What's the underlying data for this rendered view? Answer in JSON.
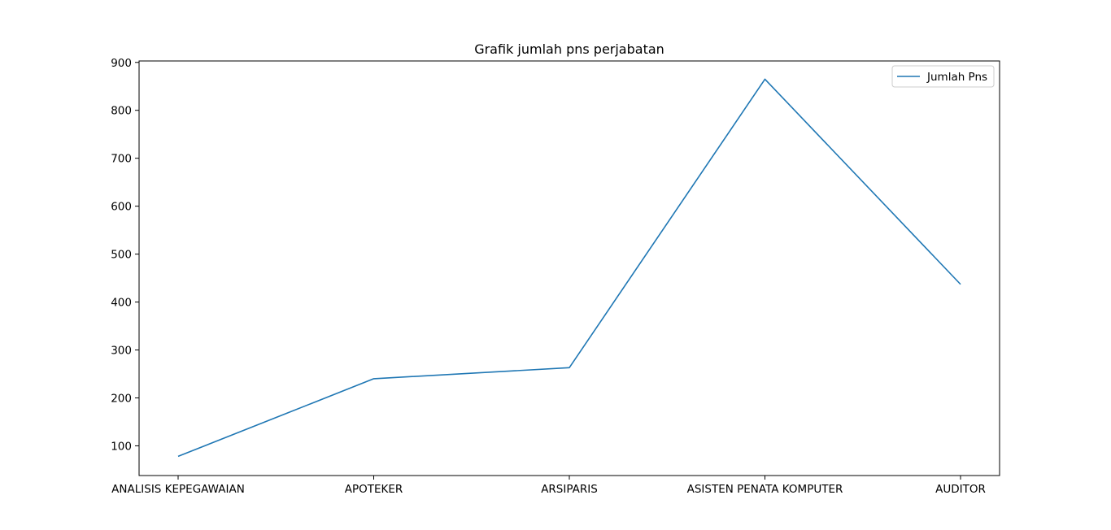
{
  "chart_data": {
    "type": "line",
    "title": "Grafik jumlah pns perjabatan",
    "xlabel": "",
    "ylabel": "",
    "categories": [
      "ANALISIS KEPEGAWAIAN",
      "APOTEKER",
      "ARSIPARIS",
      "ASISTEN PENATA KOMPUTER",
      "AUDITOR"
    ],
    "series": [
      {
        "name": "Jumlah Pns",
        "values": [
          78,
          240,
          263,
          865,
          437
        ],
        "color": "#1f77b4"
      }
    ],
    "ylim": [
      38,
      903
    ],
    "yticks": [
      100,
      200,
      300,
      400,
      500,
      600,
      700,
      800,
      900
    ],
    "grid": false,
    "legend_position": "top-right"
  }
}
